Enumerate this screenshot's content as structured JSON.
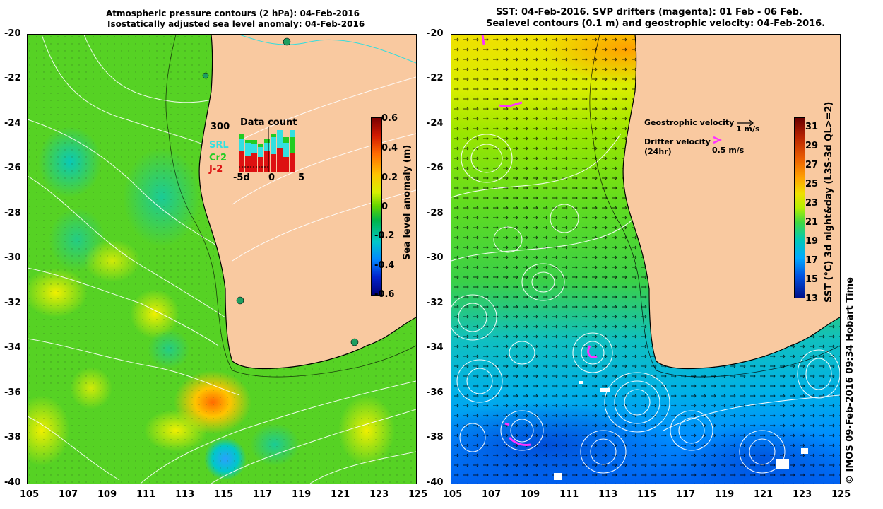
{
  "left_panel": {
    "title_line1": "Atmospheric pressure contours (2 hPa): 04-Feb-2016",
    "title_line2": "Isostatically adjusted sea level anomaly: 04-Feb-2016",
    "colorbar": {
      "label": "Sea level anomaly (m)",
      "ticks": [
        "0.6",
        "0.4",
        "0.2",
        "0",
        "-0.2",
        "-0.4",
        "-0.6"
      ],
      "colors": [
        "#7a0000",
        "#d11a00",
        "#ff6a00",
        "#ffc400",
        "#d7f000",
        "#5fd400",
        "#00b44a",
        "#00c8c8",
        "#0088ff",
        "#0022cc",
        "#000078"
      ]
    },
    "inset": {
      "title": "Data count",
      "max_label": "300",
      "x_ticks": [
        "-5d",
        "0",
        "5"
      ],
      "legend": [
        {
          "label": "SRL",
          "color": "#33e0e0"
        },
        {
          "label": "Cr2",
          "color": "#22cc22"
        },
        {
          "label": "J-2",
          "color": "#dd1111"
        }
      ]
    }
  },
  "right_panel": {
    "title_line1": "SST: 04-Feb-2016. SVP drifters (magenta): 01 Feb - 06 Feb.",
    "title_line2": "Sealevel contours (0.1 m) and geostrophic velocity: 04-Feb-2016.",
    "legend": {
      "geo_label": "Geostrophic velocity",
      "geo_scale": "1 m/s",
      "drifter_label": "Drifter velocity",
      "drifter_sub": "(24hr)",
      "drifter_scale": "0.5 m/s",
      "drifter_color": "#ff33ff"
    },
    "colorbar": {
      "label": "SST (°C) 3d night&day (L3S-3d QL>=2)",
      "ticks": [
        "31",
        "29",
        "27",
        "25",
        "23",
        "21",
        "19",
        "17",
        "15",
        "13"
      ],
      "colors": [
        "#6a0000",
        "#b52000",
        "#e85a00",
        "#ffa000",
        "#f0e000",
        "#b4ee00",
        "#40d840",
        "#00c8b8",
        "#00a8ff",
        "#0050e0",
        "#00108a"
      ]
    }
  },
  "axes": {
    "lat_labels": [
      "-20",
      "-22",
      "-24",
      "-26",
      "-28",
      "-30",
      "-32",
      "-34",
      "-36",
      "-38",
      "-40"
    ],
    "lon_labels": [
      "105",
      "107",
      "109",
      "111",
      "113",
      "115",
      "117",
      "119",
      "121",
      "123",
      "125"
    ]
  },
  "credit": "© IMOS 09-Feb-2016 09:34 Hobart Time",
  "colors": {
    "land": "#f9c9a0",
    "coast_line": "#000000",
    "contour": "#ffffff"
  }
}
